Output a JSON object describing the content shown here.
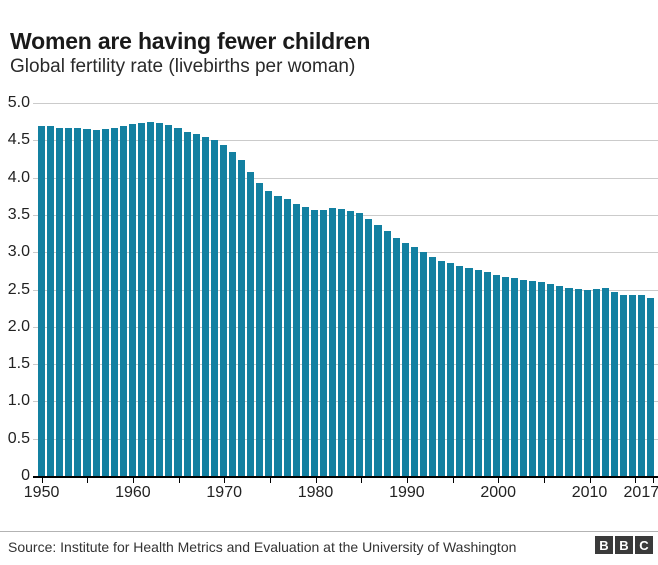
{
  "header": {
    "title": "Women are having fewer children",
    "subtitle": "Global fertility rate (livebirths per woman)"
  },
  "footer": {
    "source": "Source: Institute for Health Metrics and Evaluation at the University of Washington",
    "logo_letters": [
      "B",
      "B",
      "C"
    ]
  },
  "colors": {
    "bar": "#1380a1",
    "gridline": "#cbcbcb",
    "axis": "#000000",
    "logo_bg": "#3a3a3a"
  },
  "chart_data": {
    "type": "bar",
    "title": "Women are having fewer children",
    "subtitle": "Global fertility rate (livebirths per woman)",
    "xlabel": "",
    "ylabel": "livebirths per woman",
    "ylim": [
      0,
      5
    ],
    "grid": "horizontal, every 0.5",
    "legend": "none",
    "years": [
      1950,
      1951,
      1952,
      1953,
      1954,
      1955,
      1956,
      1957,
      1958,
      1959,
      1960,
      1961,
      1962,
      1963,
      1964,
      1965,
      1966,
      1967,
      1968,
      1969,
      1970,
      1971,
      1972,
      1973,
      1974,
      1975,
      1976,
      1977,
      1978,
      1979,
      1980,
      1981,
      1982,
      1983,
      1984,
      1985,
      1986,
      1987,
      1988,
      1989,
      1990,
      1991,
      1992,
      1993,
      1994,
      1995,
      1996,
      1997,
      1998,
      1999,
      2000,
      2001,
      2002,
      2003,
      2004,
      2005,
      2006,
      2007,
      2008,
      2009,
      2010,
      2011,
      2012,
      2013,
      2014,
      2015,
      2016,
      2017
    ],
    "values": [
      4.69,
      4.69,
      4.67,
      4.66,
      4.66,
      4.65,
      4.64,
      4.65,
      4.67,
      4.69,
      4.72,
      4.73,
      4.74,
      4.73,
      4.71,
      4.66,
      4.61,
      4.58,
      4.55,
      4.5,
      4.44,
      4.35,
      4.23,
      4.07,
      3.93,
      3.82,
      3.76,
      3.71,
      3.65,
      3.61,
      3.57,
      3.56,
      3.59,
      3.58,
      3.55,
      3.52,
      3.45,
      3.37,
      3.28,
      3.19,
      3.13,
      3.07,
      3.0,
      2.94,
      2.88,
      2.85,
      2.82,
      2.79,
      2.76,
      2.73,
      2.7,
      2.67,
      2.65,
      2.63,
      2.62,
      2.6,
      2.58,
      2.55,
      2.52,
      2.51,
      2.5,
      2.51,
      2.52,
      2.47,
      2.43,
      2.42,
      2.43,
      2.38
    ],
    "y_ticks": [
      {
        "v": 5.0,
        "label": "5.0"
      },
      {
        "v": 4.5,
        "label": "4.5"
      },
      {
        "v": 4.0,
        "label": "4.0"
      },
      {
        "v": 3.5,
        "label": "3.5"
      },
      {
        "v": 3.0,
        "label": "3.0"
      },
      {
        "v": 2.5,
        "label": "2.5"
      },
      {
        "v": 2.0,
        "label": "2.0"
      },
      {
        "v": 1.5,
        "label": "1.5"
      },
      {
        "v": 1.0,
        "label": "1.0"
      },
      {
        "v": 0.5,
        "label": "0.5"
      },
      {
        "v": 0,
        "label": "0"
      }
    ],
    "x_major_ticks": [
      {
        "v": 1950,
        "label": "1950"
      },
      {
        "v": 1960,
        "label": "1960"
      },
      {
        "v": 1970,
        "label": "1970"
      },
      {
        "v": 1980,
        "label": "1980"
      },
      {
        "v": 1990,
        "label": "1990"
      },
      {
        "v": 2000,
        "label": "2000"
      },
      {
        "v": 2010,
        "label": "2010"
      },
      {
        "v": 2017,
        "label": "2017"
      }
    ],
    "x_minor_ticks": [
      1950,
      1955,
      1960,
      1965,
      1970,
      1975,
      1980,
      1985,
      1990,
      1995,
      2000,
      2005,
      2010,
      2015,
      2017
    ]
  }
}
